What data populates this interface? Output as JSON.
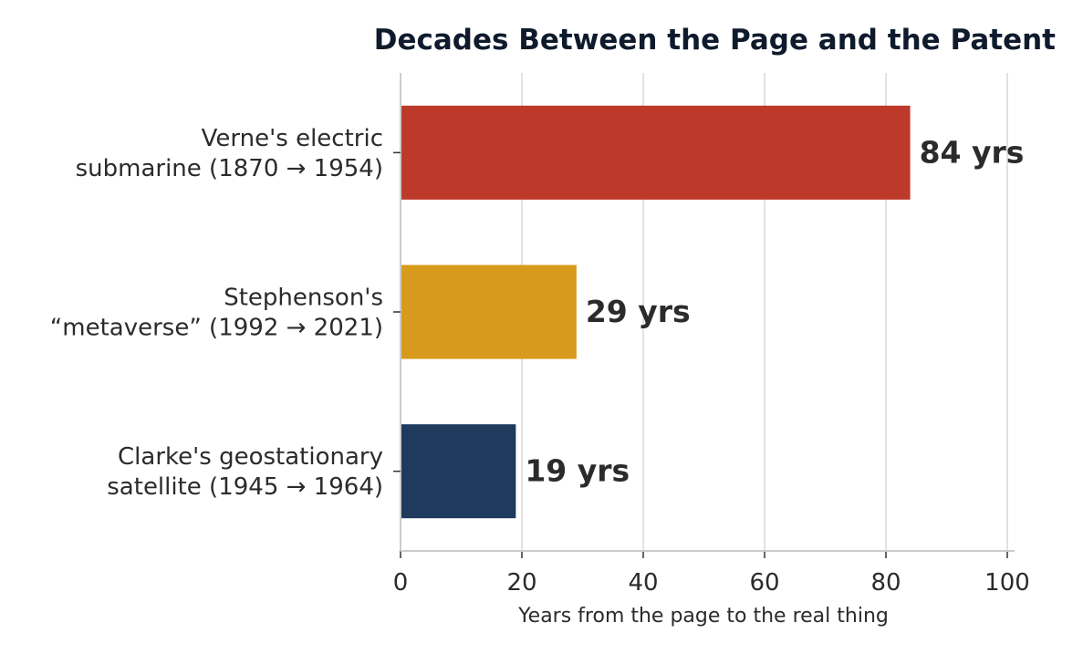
{
  "chart_data": {
    "type": "bar",
    "orientation": "horizontal",
    "title": "Decades Between the Page and the Patent",
    "xlabel": "Years from the page to the real thing",
    "ylabel": "",
    "xlim": [
      0,
      100
    ],
    "xticks": [
      0,
      20,
      40,
      60,
      80,
      100
    ],
    "grid": "vertical",
    "categories": [
      [
        "Verne's electric",
        "submarine (1870 → 1954)"
      ],
      [
        "Stephenson's",
        "“metaverse” (1992 → 2021)"
      ],
      [
        "Clarke's geostationary",
        "satellite (1945 → 1964)"
      ]
    ],
    "values": [
      84,
      29,
      19
    ],
    "value_labels": [
      "84 yrs",
      "29 yrs",
      "19 yrs"
    ],
    "colors": [
      "#bd3a2b",
      "#d89a1c",
      "#1e3a5c"
    ]
  }
}
